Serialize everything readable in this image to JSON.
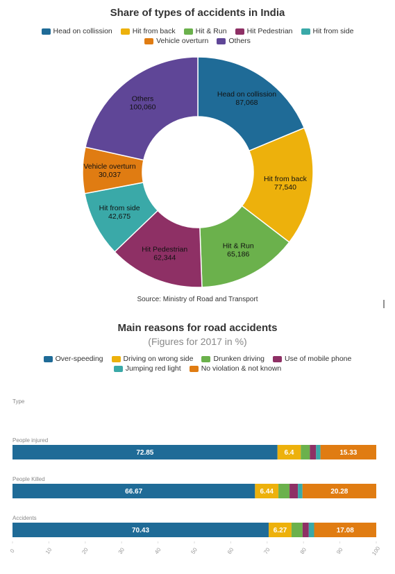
{
  "chart_data": [
    {
      "type": "donut",
      "title": "Share of types of accidents in India",
      "categories": [
        "Head on collission",
        "Hit from back",
        "Hit & Run",
        "Hit Pedestrian",
        "Hit from side",
        "Vehicle overturn",
        "Others"
      ],
      "values": [
        87068,
        77540,
        65186,
        62344,
        42675,
        30037,
        100060
      ],
      "value_labels": [
        "87,068",
        "77,540",
        "65,186",
        "62,344",
        "42,675",
        "30,037",
        "100,060"
      ],
      "colors": [
        "#1f6b97",
        "#edb10c",
        "#6bb14c",
        "#8e3065",
        "#3aa9a8",
        "#e07c12",
        "#5f4697"
      ],
      "source": "Source: Ministry of Road and Transport"
    },
    {
      "type": "stacked_bar_horizontal",
      "title": "Main reasons for road accidents",
      "subtitle": "(Figures for 2017 in %)",
      "y_label": "Type",
      "categories": [
        "People injured",
        "People Killed",
        "Accidents"
      ],
      "series": [
        {
          "name": "Over-speeding",
          "color": "#1f6b97",
          "values": [
            72.85,
            66.67,
            70.43
          ]
        },
        {
          "name": "Driving on wrong side",
          "color": "#edb10c",
          "values": [
            6.4,
            6.44,
            6.27
          ]
        },
        {
          "name": "Drunken driving",
          "color": "#6bb14c",
          "values": [
            2.5,
            3.05,
            3.05
          ]
        },
        {
          "name": "Use of mobile phone",
          "color": "#8e3065",
          "values": [
            1.7,
            2.3,
            1.7
          ]
        },
        {
          "name": "Jumping red light",
          "color": "#3aa9a8",
          "values": [
            1.22,
            1.26,
            1.47
          ]
        },
        {
          "name": "No violation & not known",
          "color": "#e07c12",
          "values": [
            15.33,
            20.28,
            17.08
          ]
        }
      ],
      "xlim": [
        0,
        100
      ],
      "xticks": [
        0,
        10,
        20,
        30,
        40,
        50,
        60,
        70,
        80,
        90,
        100
      ]
    }
  ]
}
